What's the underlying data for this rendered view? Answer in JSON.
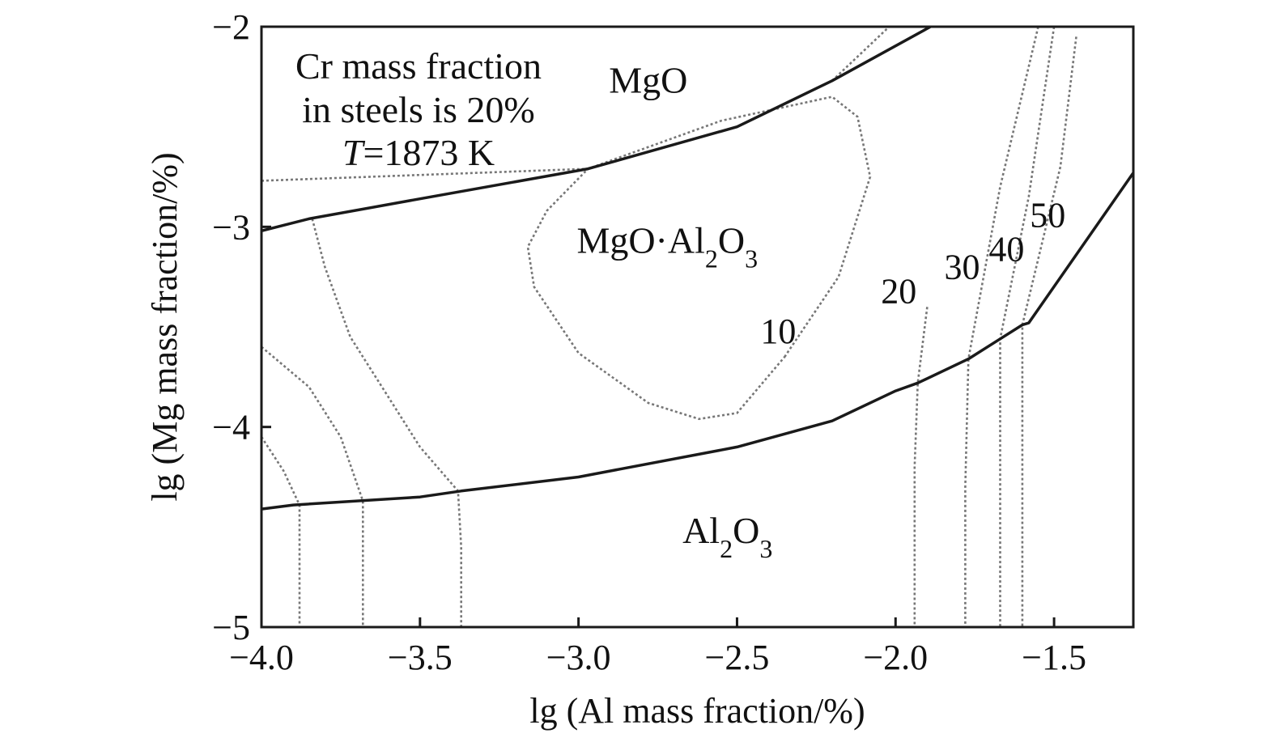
{
  "chart_data": {
    "type": "line",
    "xlabel": "lg (Al mass fraction/%)",
    "ylabel": "lg (Mg mass fraction/%)",
    "xlim": [
      -4.0,
      -1.25
    ],
    "ylim": [
      -5,
      -2
    ],
    "x_ticks": [
      -4.0,
      -3.5,
      -3.0,
      -2.5,
      -2.0,
      -1.5
    ],
    "x_tick_labels": [
      "−4.0",
      "−3.5",
      "−3.0",
      "−2.5",
      "−2.0",
      "−1.5"
    ],
    "y_ticks": [
      -5,
      -4,
      -3,
      -2
    ],
    "y_tick_labels": [
      "−5",
      "−4",
      "−3",
      "−2"
    ],
    "grid": false,
    "annotation_lines": [
      "Cr mass fraction",
      "in steels is 20%",
      "T=1873 K"
    ],
    "annotation_italic_prefix": "T",
    "region_labels": [
      {
        "key": "mgo",
        "text": "MgO",
        "x": -2.78,
        "y": -2.33
      },
      {
        "key": "spinel",
        "text": "MgO·Al2O3",
        "x": -2.72,
        "y": -3.13
      },
      {
        "key": "al2o3",
        "text": "Al2O3",
        "x": -2.53,
        "y": -4.58
      }
    ],
    "contour_labels": [
      {
        "text": "10",
        "x": -2.37,
        "y": -3.58
      },
      {
        "text": "20",
        "x": -1.99,
        "y": -3.38
      },
      {
        "text": "30",
        "x": -1.79,
        "y": -3.26
      },
      {
        "text": "40",
        "x": -1.65,
        "y": -3.17
      },
      {
        "text": "50",
        "x": -1.52,
        "y": -3.0
      }
    ],
    "phase_boundaries": [
      {
        "name": "MgO / MgO·Al2O3",
        "points": [
          [
            -4.0,
            -3.02
          ],
          [
            -3.85,
            -2.96
          ],
          [
            -3.5,
            -2.86
          ],
          [
            -2.97,
            -2.71
          ],
          [
            -2.5,
            -2.5
          ],
          [
            -2.2,
            -2.27
          ],
          [
            -1.89,
            -2.0
          ]
        ]
      },
      {
        "name": "MgO·Al2O3 / Al2O3",
        "points": [
          [
            -4.0,
            -4.41
          ],
          [
            -3.9,
            -4.39
          ],
          [
            -3.5,
            -4.35
          ],
          [
            -3.37,
            -4.32
          ],
          [
            -3.0,
            -4.25
          ],
          [
            -2.5,
            -4.1
          ],
          [
            -2.2,
            -3.97
          ],
          [
            -2.0,
            -3.82
          ],
          [
            -1.93,
            -3.78
          ],
          [
            -1.77,
            -3.66
          ],
          [
            -1.67,
            -3.56
          ],
          [
            -1.6,
            -3.49
          ],
          [
            -1.58,
            -3.48
          ],
          [
            -1.25,
            -2.73
          ]
        ]
      }
    ],
    "iso_oxygen_contours": [
      {
        "label": "10",
        "points": [
          [
            -2.35,
            -3.65
          ],
          [
            -2.18,
            -3.25
          ],
          [
            -2.08,
            -2.75
          ],
          [
            -2.12,
            -2.45
          ],
          [
            -2.2,
            -2.35
          ],
          [
            -2.55,
            -2.47
          ],
          [
            -2.97,
            -2.71
          ],
          [
            -3.1,
            -2.92
          ],
          [
            -3.16,
            -3.1
          ],
          [
            -3.14,
            -3.3
          ],
          [
            -3.0,
            -3.63
          ],
          [
            -2.78,
            -3.88
          ],
          [
            -2.62,
            -3.96
          ],
          [
            -2.5,
            -3.93
          ],
          [
            -2.35,
            -3.65
          ]
        ]
      },
      {
        "label": "10",
        "points": [
          [
            -2.2,
            -2.27
          ],
          [
            -2.1,
            -2.12
          ],
          [
            -2.02,
            -2.0
          ]
        ]
      },
      {
        "label": "",
        "points": [
          [
            -3.84,
            -2.96
          ],
          [
            -3.8,
            -3.2
          ],
          [
            -3.72,
            -3.55
          ],
          [
            -3.6,
            -3.85
          ],
          [
            -3.5,
            -4.1
          ],
          [
            -3.38,
            -4.32
          ],
          [
            -3.37,
            -4.6
          ],
          [
            -3.37,
            -5.0
          ]
        ]
      },
      {
        "label": "",
        "points": [
          [
            -4.0,
            -3.6
          ],
          [
            -3.85,
            -3.8
          ],
          [
            -3.75,
            -4.05
          ],
          [
            -3.68,
            -4.37
          ],
          [
            -3.68,
            -4.6
          ],
          [
            -3.68,
            -5.0
          ]
        ]
      },
      {
        "label": "",
        "points": [
          [
            -4.0,
            -4.05
          ],
          [
            -3.93,
            -4.22
          ],
          [
            -3.88,
            -4.39
          ],
          [
            -3.88,
            -4.7
          ],
          [
            -3.88,
            -5.0
          ]
        ]
      },
      {
        "label": "",
        "points": [
          [
            -4.0,
            -2.77
          ],
          [
            -2.97,
            -2.71
          ]
        ]
      },
      {
        "label": "20",
        "points": [
          [
            -1.9,
            -3.4
          ],
          [
            -1.93,
            -3.78
          ],
          [
            -1.94,
            -4.2
          ],
          [
            -1.94,
            -5.0
          ]
        ]
      },
      {
        "label": "30",
        "points": [
          [
            -1.55,
            -2.0
          ],
          [
            -1.67,
            -2.8
          ],
          [
            -1.77,
            -3.66
          ],
          [
            -1.78,
            -4.3
          ],
          [
            -1.78,
            -5.0
          ]
        ]
      },
      {
        "label": "40",
        "points": [
          [
            -1.5,
            -2.0
          ],
          [
            -1.58,
            -2.85
          ],
          [
            -1.67,
            -3.56
          ],
          [
            -1.67,
            -4.3
          ],
          [
            -1.67,
            -5.0
          ]
        ]
      },
      {
        "label": "50",
        "points": [
          [
            -1.43,
            -2.05
          ],
          [
            -1.48,
            -2.7
          ],
          [
            -1.6,
            -3.49
          ],
          [
            -1.6,
            -4.2
          ],
          [
            -1.6,
            -5.0
          ]
        ]
      }
    ]
  }
}
